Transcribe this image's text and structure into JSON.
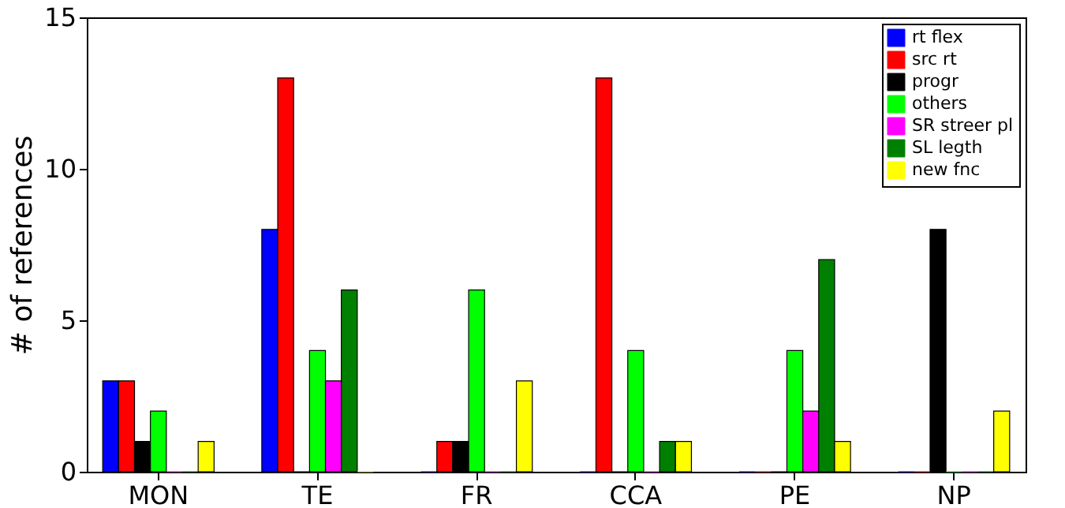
{
  "chart_data": {
    "type": "bar",
    "ylabel": "# of references",
    "categories": [
      "MON",
      "TE",
      "FR",
      "CCA",
      "PE",
      "NP"
    ],
    "series": [
      {
        "name": "rt flex",
        "color": "#0000ff",
        "values": [
          3,
          8,
          0,
          0,
          0,
          0
        ]
      },
      {
        "name": "src rt",
        "color": "#ff0000",
        "values": [
          3,
          13,
          1,
          13,
          0,
          0
        ]
      },
      {
        "name": "progr",
        "color": "#000000",
        "values": [
          1,
          0,
          1,
          0,
          0,
          8
        ]
      },
      {
        "name": "others",
        "color": "#00ff00",
        "values": [
          2,
          4,
          6,
          4,
          4,
          0
        ]
      },
      {
        "name": "SR streer pl",
        "color": "#ff00ff",
        "values": [
          0,
          3,
          0,
          0,
          2,
          0
        ]
      },
      {
        "name": "SL legth",
        "color": "#008000",
        "values": [
          0,
          6,
          0,
          1,
          7,
          0
        ]
      },
      {
        "name": "new fnc",
        "color": "#ffff00",
        "values": [
          1,
          0,
          3,
          1,
          1,
          2
        ]
      }
    ],
    "ylim": [
      0,
      15
    ],
    "yticks": [
      0,
      5,
      10,
      15
    ],
    "grid": false,
    "legend": "top right"
  }
}
